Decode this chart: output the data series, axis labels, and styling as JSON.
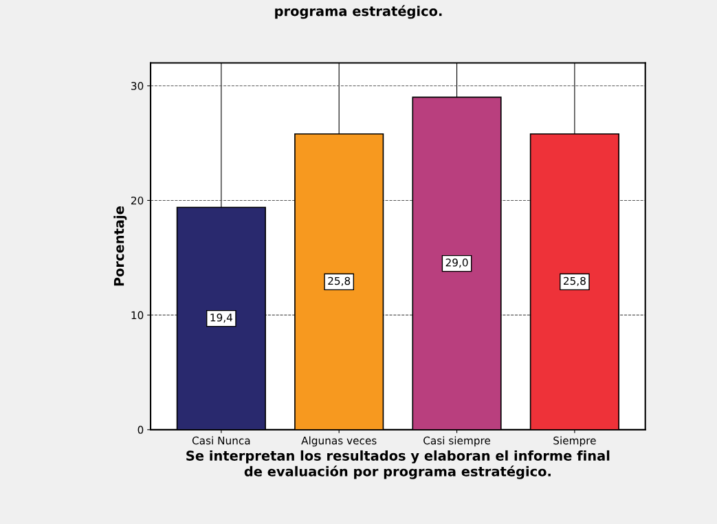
{
  "chart_data": {
    "type": "bar",
    "title": "programa estratégico.",
    "xlabel": "Se interpretan los resultados y elaboran el informe final\nde evaluación por programa estratégico.",
    "ylabel": "Porcentaje",
    "categories": [
      "Casi Nunca",
      "Algunas veces",
      "Casi siempre",
      "Siempre"
    ],
    "values": [
      19.4,
      25.8,
      29.0,
      25.8
    ],
    "colors": [
      "#29296e",
      "#f7991f",
      "#b93f7e",
      "#ee3239"
    ],
    "value_labels": [
      "19,4",
      "25,8",
      "29,0",
      "25,8"
    ],
    "ylim": [
      0,
      32
    ],
    "yticks": [
      0,
      10,
      20,
      30
    ],
    "grid": true
  }
}
